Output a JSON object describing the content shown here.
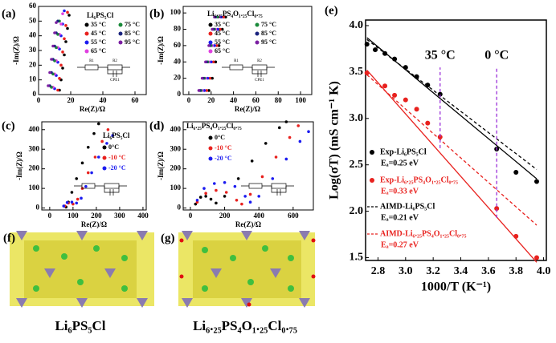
{
  "chart_data": [
    {
      "type": "scatter",
      "panel": "(a)",
      "title": "Li₆PS₅Cl",
      "xlabel": "Re(Z)/Ω",
      "ylabel": "-Im(Z)/Ω",
      "xlim": [
        0,
        67
      ],
      "ylim": [
        0,
        60
      ],
      "xticks": [
        0,
        20,
        40,
        60
      ],
      "yticks": [
        0,
        10,
        20,
        30,
        40,
        50,
        60
      ],
      "inset_labels": [
        "R1",
        "R2",
        "CPE1"
      ],
      "series": [
        {
          "name": "35 °C",
          "color": "#000000",
          "x": [
            13,
            14,
            15,
            16,
            17,
            18,
            19
          ],
          "values": [
            3,
            10,
            18,
            27,
            36,
            45,
            54
          ]
        },
        {
          "name": "45 °C",
          "color": "#e8211e",
          "x": [
            12,
            13,
            14,
            15,
            16,
            17,
            18
          ],
          "values": [
            3,
            11,
            20,
            29,
            38,
            47,
            56
          ]
        },
        {
          "name": "55 °C",
          "color": "#1c1cf0",
          "x": [
            10,
            11,
            12,
            13,
            14,
            15,
            16
          ],
          "values": [
            4,
            13,
            22,
            31,
            40,
            48,
            57
          ]
        },
        {
          "name": "65 °C",
          "color": "#e040e0",
          "x": [
            9,
            10,
            11,
            12,
            13,
            14,
            15
          ],
          "values": [
            5,
            14,
            23,
            32,
            41,
            48,
            55
          ]
        },
        {
          "name": "75 °C",
          "color": "#1a8a3a",
          "x": [
            8,
            9,
            10,
            11,
            12,
            13
          ],
          "values": [
            5,
            14,
            23,
            32,
            41,
            50
          ]
        },
        {
          "name": "85 °C",
          "color": "#1a237e",
          "x": [
            7,
            8,
            9,
            10,
            11,
            12
          ],
          "values": [
            6,
            15,
            24,
            33,
            42,
            50
          ]
        },
        {
          "name": "95 °C",
          "color": "#7b1fa2",
          "x": [
            6,
            7,
            8,
            9,
            10,
            11
          ],
          "values": [
            6,
            15,
            24,
            33,
            42,
            49
          ]
        }
      ]
    },
    {
      "type": "scatter",
      "panel": "(b)",
      "title": "Li₆.₂₅PS₄O₁.₂₅Cl₀.₇₅",
      "xlabel": "Re(Z)/Ω",
      "ylabel": "-Im(Z)/Ω",
      "xlim": [
        -5,
        110
      ],
      "ylim": [
        0,
        108
      ],
      "xticks": [
        0,
        20,
        40,
        60,
        80,
        100
      ],
      "yticks": [
        0,
        20,
        40,
        60,
        80,
        100
      ],
      "inset_labels": [
        "R1",
        "R2",
        "CPE1"
      ],
      "series": [
        {
          "name": "35 °C",
          "color": "#000000",
          "x": [
            18,
            21,
            24,
            27,
            30,
            33
          ],
          "values": [
            5,
            20,
            40,
            60,
            80,
            95
          ]
        },
        {
          "name": "45 °C",
          "color": "#e8211e",
          "x": [
            16,
            19,
            22,
            25,
            28,
            31
          ],
          "values": [
            5,
            20,
            40,
            60,
            80,
            95
          ]
        },
        {
          "name": "55 °C",
          "color": "#1c1cf0",
          "x": [
            14,
            17,
            20,
            23,
            26,
            29
          ],
          "values": [
            5,
            20,
            40,
            60,
            80,
            95
          ]
        },
        {
          "name": "65 °C",
          "color": "#e040e0",
          "x": [
            12,
            15,
            18,
            21,
            24,
            27
          ],
          "values": [
            5,
            20,
            40,
            60,
            80,
            95
          ]
        },
        {
          "name": "75 °C",
          "color": "#1a8a3a",
          "x": [
            11,
            14,
            17,
            20,
            23,
            26
          ],
          "values": [
            5,
            20,
            40,
            60,
            80,
            95
          ]
        },
        {
          "name": "85 °C",
          "color": "#1a237e",
          "x": [
            10,
            13,
            16,
            19,
            22,
            24
          ],
          "values": [
            5,
            20,
            40,
            60,
            80,
            95
          ]
        },
        {
          "name": "95 °C",
          "color": "#7b1fa2",
          "x": [
            9,
            12,
            15,
            18,
            21,
            23
          ],
          "values": [
            5,
            20,
            40,
            60,
            80,
            95
          ]
        }
      ]
    },
    {
      "type": "scatter",
      "panel": "(c)",
      "title": "Li₆PS₅Cl",
      "xlabel": "Re(Z)/Ω",
      "ylabel": "-Im(Z)/Ω",
      "xlim": [
        -34,
        414
      ],
      "ylim": [
        -10,
        440
      ],
      "xticks": [
        0,
        100,
        200,
        300,
        400
      ],
      "yticks": [
        0,
        100,
        200,
        300,
        400
      ],
      "series": [
        {
          "name": "0°C",
          "color": "#000000",
          "x": [
            70,
            80,
            95,
            115,
            140,
            165,
            190,
            210
          ],
          "values": [
            5,
            30,
            80,
            150,
            230,
            310,
            380,
            430
          ]
        },
        {
          "name": "-10 °C",
          "color": "#e8211e",
          "x": [
            65,
            80,
            100,
            120,
            140,
            165,
            195,
            225,
            250
          ],
          "values": [
            10,
            25,
            20,
            45,
            100,
            180,
            260,
            340,
            400
          ]
        },
        {
          "name": "-20 °C",
          "color": "#1c1cf0",
          "x": [
            60,
            75,
            95,
            115,
            135,
            155,
            180,
            210,
            245,
            270
          ],
          "values": [
            10,
            28,
            30,
            25,
            50,
            110,
            180,
            260,
            330,
            370
          ]
        }
      ]
    },
    {
      "type": "scatter",
      "panel": "(d)",
      "title": "Li₆.₂₅PS₄O₁.₂₅Cl₀.₇₅",
      "xlabel": "Re(Z)/Ω",
      "ylabel": "-Im(Z)/Ω",
      "xlim": [
        -42,
        718
      ],
      "ylim": [
        -10,
        440
      ],
      "xticks": [
        0,
        200,
        400,
        600
      ],
      "yticks": [
        0,
        100,
        200,
        300,
        400
      ],
      "series": [
        {
          "name": "0°C",
          "color": "#000000",
          "x": [
            30,
            60,
            90,
            120,
            150,
            200,
            280,
            360,
            440,
            520,
            560
          ],
          "values": [
            20,
            55,
            60,
            45,
            25,
            60,
            150,
            240,
            330,
            410,
            440
          ]
        },
        {
          "name": "-10 °C",
          "color": "#e8211e",
          "x": [
            40,
            90,
            150,
            210,
            270,
            300,
            350,
            420,
            500,
            580,
            630
          ],
          "values": [
            30,
            75,
            90,
            80,
            40,
            20,
            70,
            160,
            260,
            360,
            420
          ]
        },
        {
          "name": "-20 °C",
          "color": "#1c1cf0",
          "x": [
            40,
            80,
            140,
            200,
            260,
            320,
            350,
            400,
            480,
            560,
            640,
            690
          ],
          "values": [
            40,
            100,
            125,
            130,
            110,
            60,
            30,
            60,
            150,
            250,
            340,
            390
          ]
        }
      ]
    },
    {
      "type": "scatter",
      "panel": "(e)",
      "xlabel": "1000/T (K⁻¹)",
      "ylabel": "Log(σT) (mS cm⁻¹ K)",
      "xlim": [
        2.71,
        4.02
      ],
      "ylim": [
        1.47,
        4.06
      ],
      "xticks": [
        2.8,
        {
          "value": 3,
          "label": "3.0"
        },
        3.2,
        3.4,
        3.6,
        3.8,
        {
          "value": 4,
          "label": "4.0"
        }
      ],
      "yticks": [
        1.5,
        {
          "value": 2,
          "label": "2.0"
        },
        2.5,
        {
          "value": 3,
          "label": "3.0"
        },
        3.5,
        {
          "value": 4,
          "label": "4.0"
        }
      ],
      "series": [
        {
          "name": "Exp-Li₆PS₅Cl",
          "ea": "Eₐ=0.25 eV",
          "style": "marker",
          "color": "#000000",
          "x": [
            2.72,
            2.78,
            2.85,
            2.92,
            3.0,
            3.08,
            3.16,
            3.25,
            3.66,
            3.8,
            3.95
          ],
          "values": [
            3.8,
            3.74,
            3.7,
            3.64,
            3.55,
            3.45,
            3.36,
            3.26,
            2.67,
            2.42,
            2.32
          ]
        },
        {
          "name": "Exp-Li₆.₂₅PS₄O₁.₂₅Cl₀.₇₅",
          "ea": "Eₐ=0.33 eV",
          "style": "marker",
          "color": "#e8211e",
          "x": [
            2.72,
            2.85,
            2.92,
            3.0,
            3.08,
            3.16,
            3.25,
            3.66,
            3.8,
            3.95
          ],
          "values": [
            3.49,
            3.35,
            3.25,
            3.2,
            3.1,
            2.95,
            2.8,
            2.03,
            1.73,
            1.5
          ]
        },
        {
          "name": "AIMD-Li₆PS₅Cl",
          "ea": "Eₐ=0.21 eV",
          "style": "dashed",
          "color": "#000000",
          "x": [
            2.72,
            3.95
          ],
          "values": [
            3.85,
            2.45
          ]
        },
        {
          "name": "AIMD-Li₆.₂₅PS₄O₁.₂₅Cl₀.₇₅",
          "ea": "Eₐ=0.27 eV",
          "style": "dashed",
          "color": "#e8211e",
          "x": [
            2.72,
            3.95
          ],
          "values": [
            3.47,
            1.85
          ]
        }
      ],
      "fits": [
        {
          "color": "#000000",
          "x": [
            2.72,
            3.95
          ],
          "values": [
            3.87,
            2.35
          ]
        },
        {
          "color": "#e8211e",
          "x": [
            2.72,
            3.95
          ],
          "values": [
            3.52,
            1.45
          ]
        }
      ],
      "annotations": [
        {
          "text": "35 °C",
          "x": 3.25,
          "y": [
            2.68,
            3.55
          ]
        },
        {
          "text": "0 °C",
          "x": 3.66,
          "y": [
            1.93,
            3.55
          ]
        }
      ]
    }
  ],
  "structures": [
    {
      "panel": "(f)",
      "caption": "Li₆PS₅Cl"
    },
    {
      "panel": "(g)",
      "caption": "Li₆.₂₅PS₄O₁.₂₅Cl₀.₇₅"
    }
  ]
}
